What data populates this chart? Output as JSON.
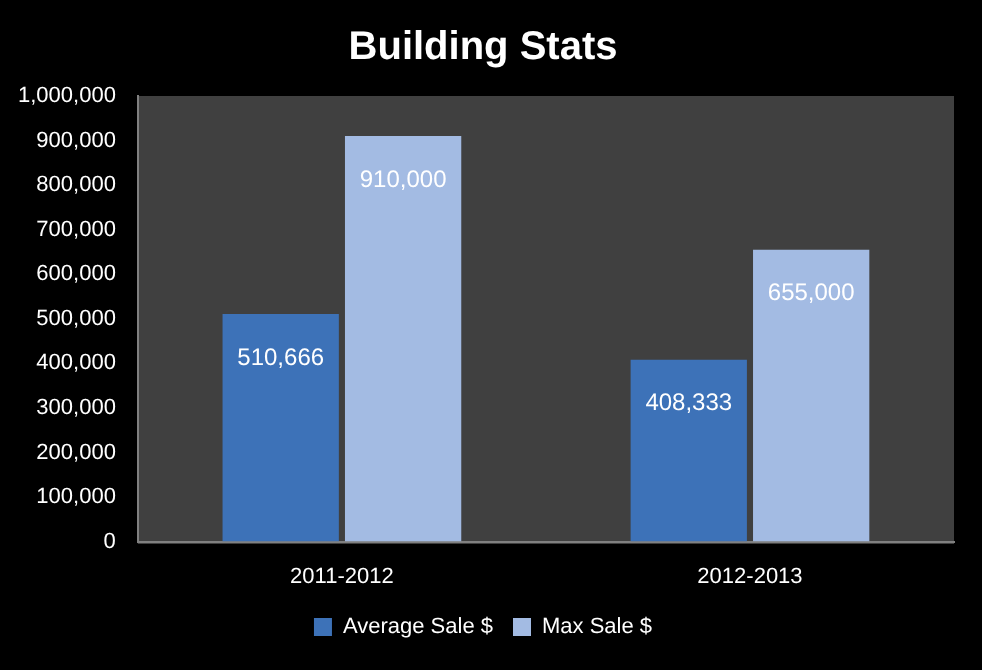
{
  "chart_data": {
    "type": "bar",
    "title": "Building Stats",
    "categories": [
      "2011-2012",
      "2012-2013"
    ],
    "series": [
      {
        "name": "Average Sale $",
        "color": "#3d72b8",
        "values": [
          510666,
          408333
        ],
        "value_labels": [
          "510,666",
          "408,333"
        ]
      },
      {
        "name": "Max Sale $",
        "color": "#a3bbe3",
        "values": [
          910000,
          655000
        ],
        "value_labels": [
          "910,000",
          "655,000"
        ]
      }
    ],
    "ylim": [
      0,
      1000000
    ],
    "yticks": [
      {
        "value": 0,
        "label": "0"
      },
      {
        "value": 100000,
        "label": "100,000"
      },
      {
        "value": 200000,
        "label": "200,000"
      },
      {
        "value": 300000,
        "label": "300,000"
      },
      {
        "value": 400000,
        "label": "400,000"
      },
      {
        "value": 500000,
        "label": "500,000"
      },
      {
        "value": 600000,
        "label": "600,000"
      },
      {
        "value": 700000,
        "label": "700,000"
      },
      {
        "value": 800000,
        "label": "800,000"
      },
      {
        "value": 900000,
        "label": "900,000"
      },
      {
        "value": 1000000,
        "label": "1,000,000"
      }
    ],
    "grid": false,
    "legend": "bottom"
  }
}
